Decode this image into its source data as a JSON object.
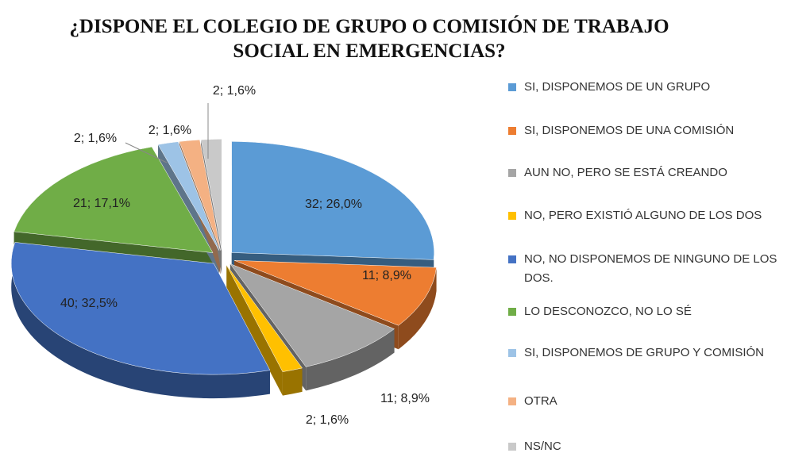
{
  "chart_data": {
    "type": "pie",
    "title": "¿DISPONE EL COLEGIO DE GRUPO O COMISIÓN DE TRABAJO SOCIAL EN EMERGENCIAS?",
    "categories": [
      "SI, DISPONEMOS DE UN GRUPO",
      "SI, DISPONEMOS DE UNA COMISIÓN",
      "AUN NO, PERO SE ESTÁ CREANDO",
      "NO, PERO EXISTIÓ ALGUNO DE LOS DOS",
      "NO, NO DISPONEMOS DE NINGUNO DE LOS DOS.",
      "LO DESCONOZCO, NO LO SÉ",
      "SI, DISPONEMOS DE GRUPO Y COMISIÓN",
      "OTRA",
      "NS/NC"
    ],
    "values": [
      32,
      11,
      11,
      2,
      40,
      21,
      2,
      2,
      2
    ],
    "value_labels": [
      "32; 26,0%",
      "11; 8,9%",
      "11; 8,9%",
      "2; 1,6%",
      "40; 32,5%",
      "21; 17,1%",
      "2; 1,6%",
      "2; 1,6%",
      "2; 1,6%"
    ],
    "colors": [
      "#5b9bd5",
      "#ed7d31",
      "#a5a5a5",
      "#ffc000",
      "#4472c4",
      "#70ad47",
      "#9dc3e6",
      "#f4b183",
      "#c9c9c9"
    ],
    "legend": "right"
  }
}
